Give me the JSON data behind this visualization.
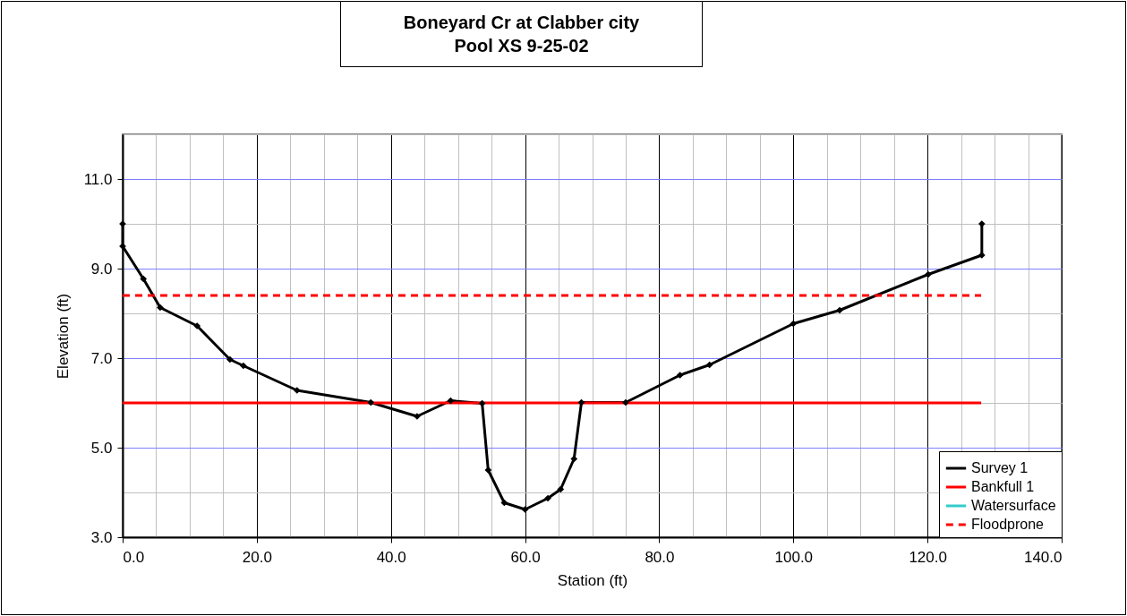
{
  "chart_data": {
    "type": "line",
    "title": "Boneyard Cr at Clabber city",
    "subtitle": "Pool XS 9-25-02",
    "xlabel": "Station (ft)",
    "ylabel": "Elevation (ft)",
    "xlim": [
      0,
      140
    ],
    "ylim": [
      3,
      12
    ],
    "xticks": [
      {
        "value": 0,
        "label": "0.0"
      },
      {
        "value": 20,
        "label": "20.0"
      },
      {
        "value": 40,
        "label": "40.0"
      },
      {
        "value": 60,
        "label": "60.0"
      },
      {
        "value": 80,
        "label": "80.0"
      },
      {
        "value": 100,
        "label": "100.0"
      },
      {
        "value": 120,
        "label": "120.0"
      },
      {
        "value": 140,
        "label": "140.0"
      }
    ],
    "yticks": [
      {
        "value": 3,
        "label": "3.0"
      },
      {
        "value": 5,
        "label": "5.0"
      },
      {
        "value": 7,
        "label": "7.0"
      },
      {
        "value": 9,
        "label": "9.0"
      },
      {
        "value": 11,
        "label": "11.0"
      }
    ],
    "grid": true,
    "legend": "bottom right",
    "series": [
      {
        "name": "Survey 1",
        "color": "#000000",
        "marker": "diamond",
        "line_style": "solid",
        "x": [
          0,
          0,
          3.1,
          5.6,
          11.1,
          16.0,
          18.0,
          26.0,
          37.0,
          43.9,
          48.9,
          53.6,
          54.5,
          56.9,
          60.0,
          63.4,
          65.3,
          67.3,
          68.4,
          75.0,
          83.1,
          87.5,
          100.0,
          106.9,
          120.1,
          128.1,
          128.1
        ],
        "values": [
          10.0,
          9.5,
          8.77,
          8.13,
          7.72,
          6.97,
          6.83,
          6.28,
          6.01,
          5.7,
          6.05,
          5.99,
          4.5,
          3.77,
          3.62,
          3.87,
          4.07,
          4.75,
          6.01,
          6.01,
          6.62,
          6.85,
          7.77,
          8.07,
          8.87,
          9.3,
          10.0
        ]
      },
      {
        "name": "Bankfull 1",
        "color": "#ff0000",
        "marker": "none",
        "line_style": "solid",
        "x": [
          0,
          128
        ],
        "values": [
          6.0,
          6.0
        ]
      },
      {
        "name": "Watersurface",
        "color": "#33cccc"
      },
      {
        "name": "Floodprone",
        "color": "#ff0000",
        "marker": "none",
        "line_style": "dashed",
        "x": [
          0,
          128
        ],
        "values": [
          8.4,
          8.4
        ]
      }
    ]
  }
}
